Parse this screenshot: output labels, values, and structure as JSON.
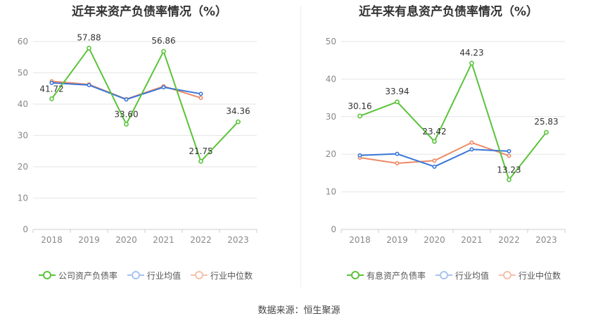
{
  "chart_data": [
    {
      "type": "line",
      "title": "近年来资产负债率情况（%）",
      "categories": [
        "2018",
        "2019",
        "2020",
        "2021",
        "2022",
        "2023"
      ],
      "ylim": [
        0,
        60
      ],
      "yticks": [
        0,
        10,
        20,
        30,
        40,
        50,
        60
      ],
      "series": [
        {
          "name": "公司资产负债率",
          "color": "#5ac33a",
          "values": [
            41.72,
            57.88,
            33.6,
            56.86,
            21.75,
            34.36
          ],
          "labels": [
            "41.72",
            "57.88",
            "33.60",
            "56.86",
            "21.75",
            "34.36"
          ]
        },
        {
          "name": "行业均值",
          "color": "#3a76d8",
          "values": [
            46.8,
            46.1,
            41.5,
            45.4,
            43.3,
            null
          ]
        },
        {
          "name": "行业中位数",
          "color": "#ee8a66",
          "values": [
            47.3,
            46.3,
            41.6,
            45.7,
            42.0,
            null
          ]
        }
      ]
    },
    {
      "type": "line",
      "title": "近年来有息资产负债率情况（%）",
      "categories": [
        "2018",
        "2019",
        "2020",
        "2021",
        "2022",
        "2023"
      ],
      "ylim": [
        0,
        50
      ],
      "yticks": [
        0,
        10,
        20,
        30,
        40,
        50
      ],
      "series": [
        {
          "name": "有息资产负债率",
          "color": "#5ac33a",
          "values": [
            30.16,
            33.94,
            23.42,
            44.23,
            13.23,
            25.83
          ],
          "labels": [
            "30.16",
            "33.94",
            "23.42",
            "44.23",
            "13.23",
            "25.83"
          ]
        },
        {
          "name": "行业均值",
          "color": "#3a76d8",
          "values": [
            19.7,
            20.1,
            16.7,
            21.3,
            20.8,
            null
          ]
        },
        {
          "name": "行业中位数",
          "color": "#ee8a66",
          "values": [
            19.1,
            17.6,
            18.3,
            23.1,
            19.6,
            null
          ]
        }
      ]
    }
  ],
  "source_label": "数据来源：恒生聚源"
}
